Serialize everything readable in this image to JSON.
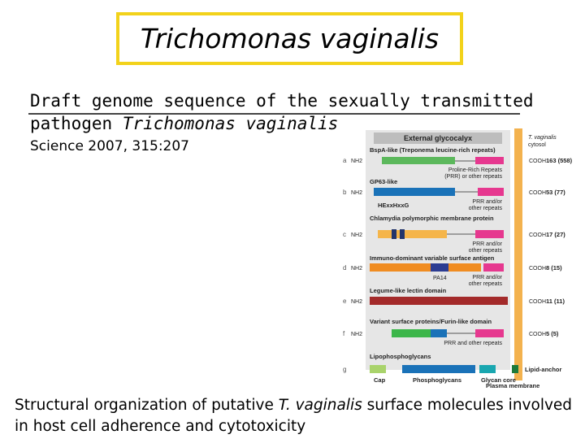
{
  "header": {
    "title": "Trichomonas vaginalis"
  },
  "subtitle": {
    "line1": "Draft genome sequence of the sexually transmitted",
    "line2_plain": "pathogen ",
    "line2_italic": "Trichomonas vaginalis"
  },
  "citation": "Science 2007, 315:207",
  "figure": {
    "top_label": "External glycocalyx",
    "cytosol_label": [
      "T. vaginalis",
      "cytosol"
    ],
    "nh2": "NH2",
    "cooh": "COOH",
    "membrane_label": "Plasma membrane",
    "rows": [
      {
        "letter": "a",
        "title": "BspA-like (Treponema leucine-rich repeats)",
        "annotation": [
          "Proline-Rich Repeats",
          "(PRR) or other repeats"
        ],
        "count": "163 (558)"
      },
      {
        "letter": "b",
        "title": "GP63-like",
        "annotation": [
          "PRR and/or",
          "other repeats"
        ],
        "motif": "HExxHxxG",
        "count": "53 (77)"
      },
      {
        "letter": "c",
        "title": "Chlamydia polymorphic membrane protein",
        "annotation": [
          "PRR and/or",
          "other repeats"
        ],
        "count": "17 (27)"
      },
      {
        "letter": "d",
        "title": "Immuno-dominant variable surface antigen",
        "domain": "PA14",
        "annotation": [
          "PRR and/or",
          "other repeats"
        ],
        "count": "8 (15)"
      },
      {
        "letter": "e",
        "title": "Legume-like lectin domain",
        "count": "11 (11)"
      },
      {
        "letter": "f",
        "title": "Variant surface proteins/Furin-like domain",
        "annotation": [
          "PRR and other repeats"
        ],
        "count": "5 (5)"
      },
      {
        "letter": "g",
        "title": "Lipophosphoglycans",
        "parts": [
          "Cap",
          "Phosphoglycans",
          "Glycan core"
        ],
        "anchor": "Lipid-anchor"
      }
    ]
  },
  "caption": {
    "before": "Structural organization of putative ",
    "italic": "T. vaginalis",
    "after": " surface molecules involved in host cell adherence and cytotoxicity"
  }
}
